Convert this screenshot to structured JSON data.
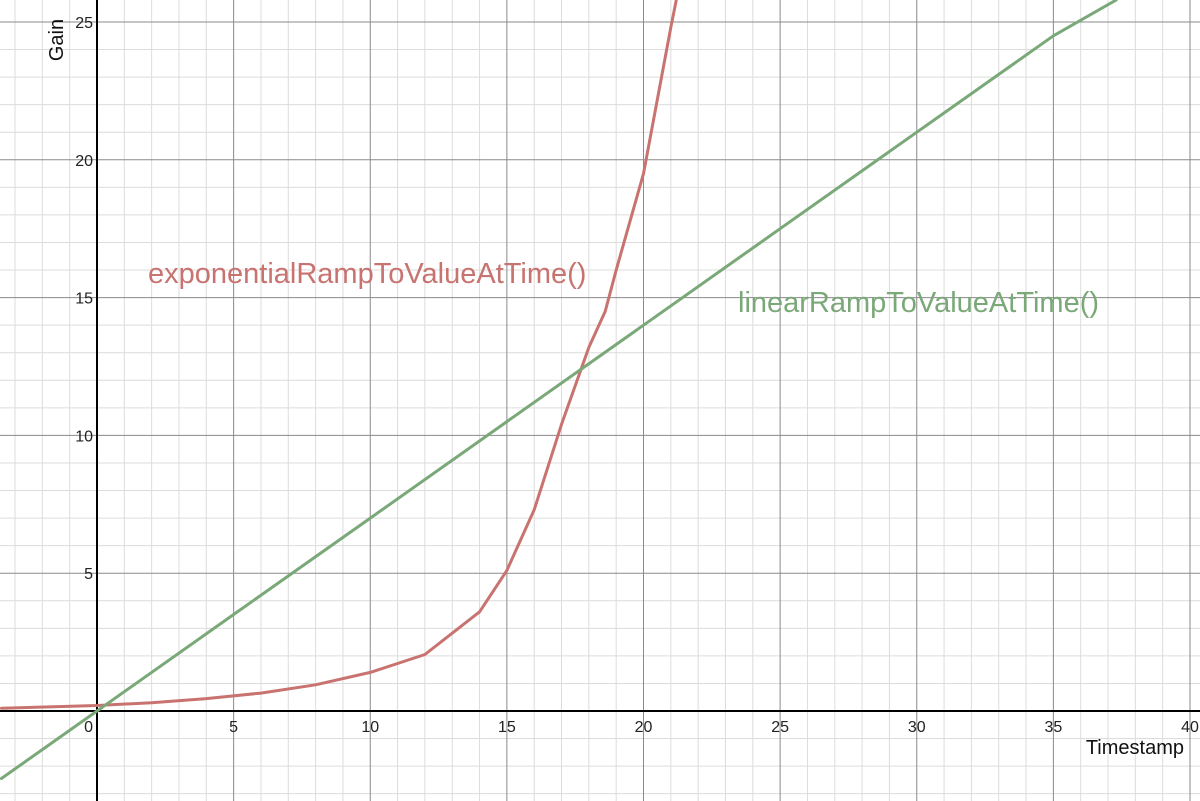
{
  "chart_data": {
    "type": "line",
    "xlabel": "Timestamp",
    "ylabel": "Gain",
    "xlim": [
      -3.5,
      40.5
    ],
    "ylim": [
      -3.2,
      25.8
    ],
    "grid": true,
    "x_ticks": [
      0,
      5,
      10,
      15,
      20,
      25,
      30,
      35,
      40
    ],
    "y_ticks": [
      5,
      10,
      15,
      20,
      25
    ],
    "series": [
      {
        "name": "exponentialRampToValueAtTime()",
        "color": "#c87370",
        "x": [
          -3.5,
          0,
          2,
          4,
          6,
          8,
          10,
          12,
          14,
          15,
          16,
          17,
          18,
          18.6,
          19,
          20,
          21,
          21.2
        ],
        "y": [
          0.1,
          0.2,
          0.3,
          0.45,
          0.65,
          0.95,
          1.4,
          2.05,
          3.6,
          5.1,
          7.3,
          10.4,
          13.2,
          14.5,
          16.0,
          19.5,
          24.8,
          25.8
        ]
      },
      {
        "name": "linearRampToValueAtTime()",
        "color": "#7aa878",
        "x": [
          -3.5,
          0,
          5,
          10,
          15,
          20,
          25,
          30,
          35,
          37.3
        ],
        "y": [
          -2.45,
          0,
          3.5,
          7,
          10.5,
          14,
          17.5,
          21,
          24.5,
          25.8
        ]
      }
    ]
  }
}
